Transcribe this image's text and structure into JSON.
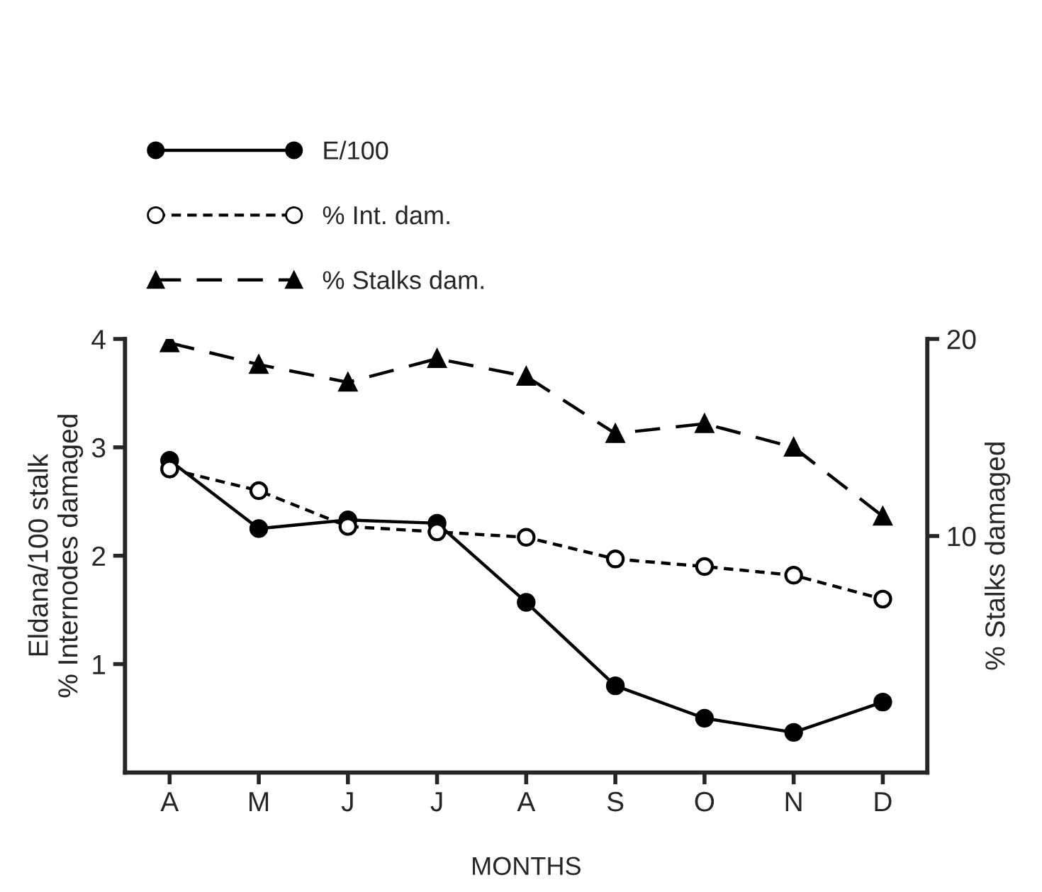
{
  "chart_data": {
    "type": "line",
    "xlabel": "MONTHS",
    "ylabel": "Eldana/100 stalk\n% Internodes damaged",
    "y2label": "% Stalks damaged",
    "categories": [
      "A",
      "M",
      "J",
      "J",
      "A",
      "S",
      "O",
      "N",
      "D"
    ],
    "series": [
      {
        "name": "E/100",
        "color": "#000000",
        "marker": "circle",
        "line_style": "solid",
        "values": [
          2.88,
          2.25,
          2.33,
          2.3,
          1.57,
          0.8,
          0.5,
          0.37,
          0.65
        ]
      },
      {
        "name": "% Int. dam.",
        "color": "#000000",
        "marker": "circle",
        "line_style": "dotted",
        "values": [
          2.8,
          2.6,
          2.27,
          2.22,
          2.17,
          1.97,
          1.9,
          1.82,
          1.6
        ]
      },
      {
        "name": "% Stalks dam.",
        "color": "#000000",
        "marker": "triangle",
        "line_style": "dashed",
        "axis": "y2",
        "values": [
          19.8,
          18.7,
          17.8,
          19.0,
          18.1,
          15.2,
          15.7,
          14.5,
          11.0
        ]
      }
    ],
    "ylim": [
      0,
      4
    ],
    "yticks": [
      1,
      2,
      3,
      4
    ],
    "y2lim": [
      -2,
      20
    ],
    "y2ticks": [
      10,
      20
    ],
    "grid": false,
    "legend": "top left"
  }
}
